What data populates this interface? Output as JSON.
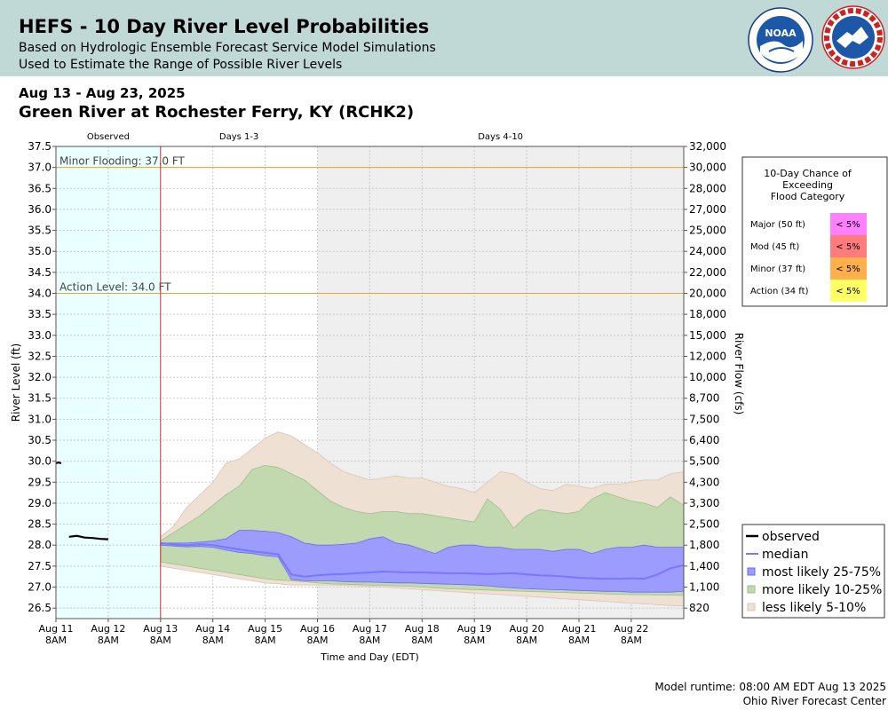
{
  "header": {
    "title": "HEFS - 10 Day River Level Probabilities",
    "subtitle1": "Based on Hydrologic Ensemble Forecast Service Model Simulations",
    "subtitle2": "Used to Estimate the Range of Possible River Levels",
    "noaa_logo_text": "NOAA",
    "noaa_ring_text": "NATIONAL OCEANIC AND ATMOSPHERIC ADMINISTRATION · U.S. DEPARTMENT OF COMMERCE",
    "nws_ring_text": "NATIONAL WEATHER SERVICE"
  },
  "date_range": "Aug 13 - Aug 23, 2025",
  "station": "Green River at Rochester Ferry, KY (RCHK2)",
  "footer": {
    "runtime": "Model runtime: 08:00 AM EDT Aug 13 2025",
    "center": "Ohio River Forecast Center"
  },
  "colors": {
    "observed_bg": "#eaffff",
    "forecast_bg": "#efefef",
    "grid": "#c8c8c8",
    "threshold_line": "#f0a030",
    "forecast_start_line": "#cc3333",
    "median": "#7777ff",
    "band_25_75": "#9c9cff",
    "band_10_25": "#c2d9b0",
    "band_5_10": "#eee0d3"
  },
  "chart_data": {
    "type": "area",
    "ylabel": "River Level (ft)",
    "y2label": "River Flow (cfs)",
    "xlabel": "Time and Day (EDT)",
    "ylim": [
      26.25,
      37.5
    ],
    "y_ticks": [
      26.5,
      27.0,
      27.5,
      28.0,
      28.5,
      29.0,
      29.5,
      30.0,
      30.5,
      31.0,
      31.5,
      32.0,
      32.5,
      33.0,
      33.5,
      34.0,
      34.5,
      35.0,
      35.5,
      36.0,
      36.5,
      37.0,
      37.5
    ],
    "y_tick_labels": [
      "26.5",
      "27.0",
      "27.5",
      "28.0",
      "28.5",
      "29.0",
      "29.5",
      "30.0",
      "30.5",
      "31.0",
      "31.5",
      "32.0",
      "32.5",
      "33.0",
      "33.5",
      "34.0",
      "34.5",
      "35.0",
      "35.5",
      "36.0",
      "36.5",
      "37.0",
      "37.5"
    ],
    "y2_tick_labels": [
      "820",
      "1,100",
      "1,400",
      "1,800",
      "2,500",
      "3,300",
      "4,300",
      "5,500",
      "6,400",
      "7,500",
      "8,700",
      "10,000",
      "12,000",
      "15,000",
      "18,000",
      "20,000",
      "22,000",
      "24,000",
      "25,000",
      "27,000",
      "28,000",
      "30,000",
      "32,000"
    ],
    "xlim_days": [
      -2,
      10
    ],
    "x_ticks": [
      {
        "day": -2,
        "label": "Aug 11",
        "sub": "8AM"
      },
      {
        "day": -1,
        "label": "Aug 12",
        "sub": "8AM"
      },
      {
        "day": 0,
        "label": "Aug 13",
        "sub": "8AM"
      },
      {
        "day": 1,
        "label": "Aug 14",
        "sub": "8AM"
      },
      {
        "day": 2,
        "label": "Aug 15",
        "sub": "8AM"
      },
      {
        "day": 3,
        "label": "Aug 16",
        "sub": "8AM"
      },
      {
        "day": 4,
        "label": "Aug 17",
        "sub": "8AM"
      },
      {
        "day": 5,
        "label": "Aug 18",
        "sub": "8AM"
      },
      {
        "day": 6,
        "label": "Aug 19",
        "sub": "8AM"
      },
      {
        "day": 7,
        "label": "Aug 20",
        "sub": "8AM"
      },
      {
        "day": 8,
        "label": "Aug 21",
        "sub": "8AM"
      },
      {
        "day": 9,
        "label": "Aug 22",
        "sub": "8AM"
      }
    ],
    "regions": [
      {
        "label": "Observed",
        "from": -2,
        "to": 0
      },
      {
        "label": "Days 1-3",
        "from": 0,
        "to": 3
      },
      {
        "label": "Days 4-10",
        "from": 3,
        "to": 10
      }
    ],
    "thresholds": [
      {
        "label": "Minor Flooding: 37.0 FT",
        "value": 37.0
      },
      {
        "label": "Action Level: 34.0 FT",
        "value": 34.0
      }
    ],
    "observed_segments": [
      [
        [
          -2.0,
          29.95
        ],
        [
          -1.95,
          29.97
        ],
        [
          -1.9,
          29.95
        ]
      ],
      [
        [
          -1.75,
          28.2
        ],
        [
          -1.6,
          28.22
        ],
        [
          -1.45,
          28.18
        ],
        [
          -1.3,
          28.17
        ],
        [
          -1.15,
          28.15
        ],
        [
          -1.0,
          28.14
        ]
      ]
    ],
    "forecast_days": [
      0,
      0.25,
      0.5,
      0.75,
      1,
      1.25,
      1.5,
      1.75,
      2,
      2.25,
      2.5,
      2.75,
      3,
      3.25,
      3.5,
      3.75,
      4,
      4.25,
      4.5,
      4.75,
      5,
      5.25,
      5.5,
      5.75,
      6,
      6.25,
      6.5,
      6.75,
      7,
      7.25,
      7.5,
      7.75,
      8,
      8.25,
      8.5,
      8.75,
      9,
      9.25,
      9.5,
      9.75,
      10
    ],
    "series": [
      {
        "name": "less likely 5-10%",
        "kind": "band",
        "upper": [
          28.2,
          28.45,
          28.9,
          29.2,
          29.5,
          29.95,
          30.05,
          30.3,
          30.55,
          30.7,
          30.6,
          30.4,
          30.2,
          29.95,
          29.75,
          29.65,
          29.55,
          29.6,
          29.65,
          29.6,
          29.6,
          29.5,
          29.4,
          29.35,
          29.25,
          29.5,
          29.75,
          29.7,
          29.5,
          29.35,
          29.3,
          29.45,
          29.4,
          29.35,
          29.45,
          29.45,
          29.5,
          29.55,
          29.55,
          29.7,
          29.75
        ],
        "lower": [
          27.5,
          27.45,
          27.4,
          27.35,
          27.3,
          27.25,
          27.2,
          27.15,
          27.1,
          27.08,
          27.05,
          27.05,
          27.05,
          27.05,
          27.04,
          27.03,
          27.02,
          27.0,
          26.98,
          26.96,
          26.94,
          26.92,
          26.9,
          26.88,
          26.86,
          26.84,
          26.82,
          26.8,
          26.78,
          26.76,
          26.74,
          26.72,
          26.7,
          26.68,
          26.66,
          26.64,
          26.62,
          26.6,
          26.58,
          26.56,
          26.55
        ]
      },
      {
        "name": "more likely 10-25%",
        "kind": "band",
        "upper": [
          28.1,
          28.3,
          28.5,
          28.7,
          28.95,
          29.2,
          29.4,
          29.8,
          29.9,
          29.85,
          29.7,
          29.55,
          29.3,
          29.05,
          28.9,
          28.8,
          28.75,
          28.8,
          28.8,
          28.75,
          28.75,
          28.7,
          28.65,
          28.6,
          28.55,
          29.1,
          28.85,
          28.4,
          28.7,
          28.85,
          28.8,
          28.75,
          28.8,
          29.1,
          29.25,
          29.15,
          29.05,
          29.0,
          28.9,
          29.15,
          28.95
        ],
        "lower": [
          27.6,
          27.55,
          27.5,
          27.45,
          27.4,
          27.35,
          27.3,
          27.25,
          27.2,
          27.17,
          27.15,
          27.13,
          27.1,
          27.08,
          27.07,
          27.06,
          27.05,
          27.04,
          27.03,
          27.02,
          27.0,
          26.98,
          26.96,
          26.95,
          26.94,
          26.93,
          26.92,
          26.91,
          26.9,
          26.89,
          26.88,
          26.87,
          26.86,
          26.85,
          26.84,
          26.83,
          26.82,
          26.82,
          26.81,
          26.81,
          26.8
        ]
      },
      {
        "name": "most likely 25-75%",
        "kind": "band",
        "upper": [
          28.05,
          28.05,
          28.05,
          28.07,
          28.1,
          28.15,
          28.35,
          28.35,
          28.33,
          28.3,
          28.2,
          28.05,
          28.0,
          28.0,
          28.02,
          28.05,
          28.15,
          28.2,
          28.05,
          28.0,
          27.9,
          27.8,
          27.95,
          28.0,
          28.0,
          27.95,
          27.95,
          27.9,
          27.9,
          27.9,
          27.85,
          27.9,
          27.9,
          27.8,
          27.9,
          27.95,
          27.95,
          28.0,
          27.95,
          27.95,
          27.95
        ],
        "lower": [
          28.0,
          27.98,
          27.96,
          27.97,
          27.95,
          27.88,
          27.83,
          27.8,
          27.75,
          27.72,
          27.18,
          27.15,
          27.15,
          27.15,
          27.13,
          27.12,
          27.12,
          27.11,
          27.1,
          27.1,
          27.09,
          27.08,
          27.07,
          27.06,
          27.05,
          27.03,
          27.0,
          26.98,
          26.96,
          26.95,
          26.94,
          26.93,
          26.92,
          26.91,
          26.9,
          26.9,
          26.88,
          26.88,
          26.88,
          26.88,
          26.9
        ]
      },
      {
        "name": "median",
        "kind": "line",
        "values": [
          28.05,
          28.02,
          28.0,
          28.02,
          28.0,
          27.95,
          27.9,
          27.85,
          27.82,
          27.78,
          27.3,
          27.25,
          27.28,
          27.3,
          27.31,
          27.33,
          27.35,
          27.37,
          27.36,
          27.35,
          27.35,
          27.34,
          27.33,
          27.33,
          27.32,
          27.31,
          27.32,
          27.33,
          27.3,
          27.28,
          27.27,
          27.25,
          27.22,
          27.21,
          27.2,
          27.2,
          27.21,
          27.2,
          27.3,
          27.45,
          27.52
        ]
      }
    ],
    "legend": [
      "observed",
      "median",
      "most likely 25-75%",
      "more likely 10-25%",
      "less likely 5-10%"
    ],
    "legend_position": "bottom-right, outside plot"
  },
  "flood_table": {
    "title_lines": [
      "10-Day Chance of",
      "Exceeding",
      "Flood Category"
    ],
    "rows": [
      {
        "label": "Major (50 ft)",
        "value": "< 5%",
        "color": "#ff80ff"
      },
      {
        "label": "Mod (45 ft)",
        "value": "< 5%",
        "color": "#ff7c7c"
      },
      {
        "label": "Minor (37 ft)",
        "value": "< 5%",
        "color": "#ffb04d"
      },
      {
        "label": "Action (34 ft)",
        "value": "< 5%",
        "color": "#ffff66"
      }
    ]
  }
}
